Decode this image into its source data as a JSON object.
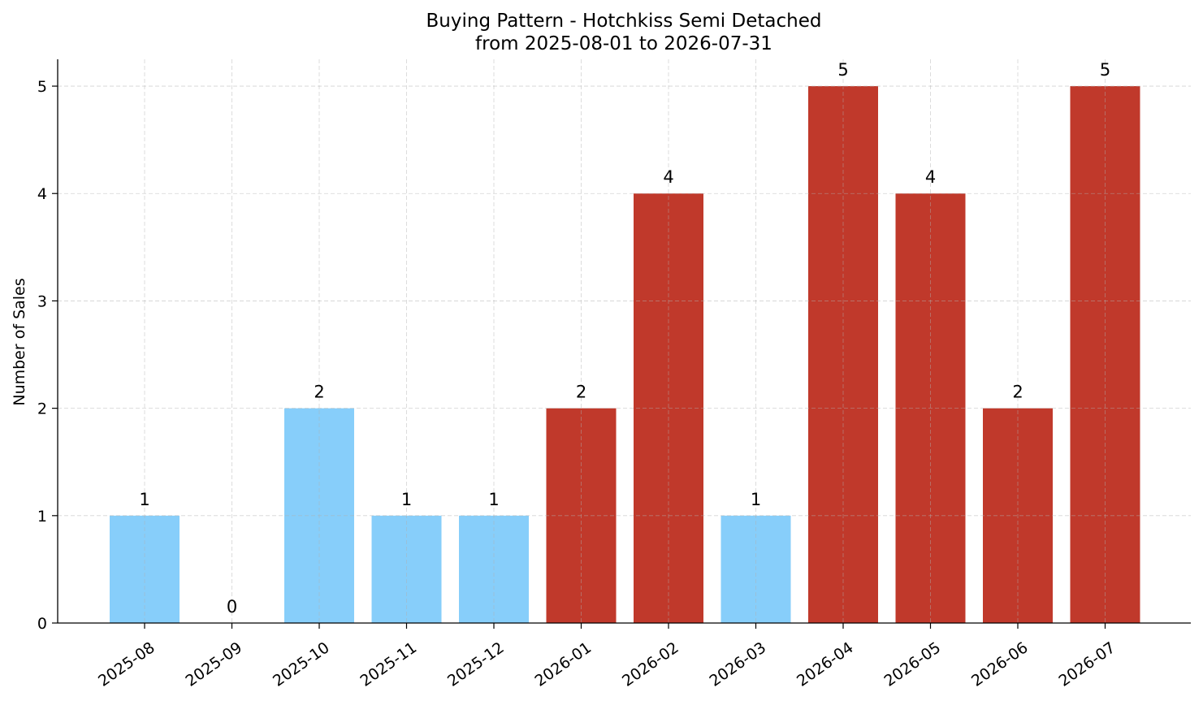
{
  "chart_data": {
    "type": "bar",
    "title": "Buying Pattern - Hotchkiss Semi Detached",
    "subtitle": "from 2025-08-01 to 2026-07-31",
    "xlabel": "",
    "ylabel": "Number of Sales",
    "categories": [
      "2025-08",
      "2025-09",
      "2025-10",
      "2025-11",
      "2025-12",
      "2026-01",
      "2026-02",
      "2026-03",
      "2026-04",
      "2026-05",
      "2026-06",
      "2026-07"
    ],
    "values": [
      1,
      0,
      2,
      1,
      1,
      2,
      4,
      1,
      5,
      4,
      2,
      5
    ],
    "bar_colors": [
      "#87CEFA",
      "#87CEFA",
      "#87CEFA",
      "#87CEFA",
      "#87CEFA",
      "#C0392B",
      "#C0392B",
      "#87CEFA",
      "#C0392B",
      "#C0392B",
      "#C0392B",
      "#C0392B"
    ],
    "ylim": [
      0,
      5.25
    ],
    "yticks": [
      0,
      1,
      2,
      3,
      4,
      5
    ],
    "grid": true,
    "x_tick_rotation_deg": 35
  }
}
